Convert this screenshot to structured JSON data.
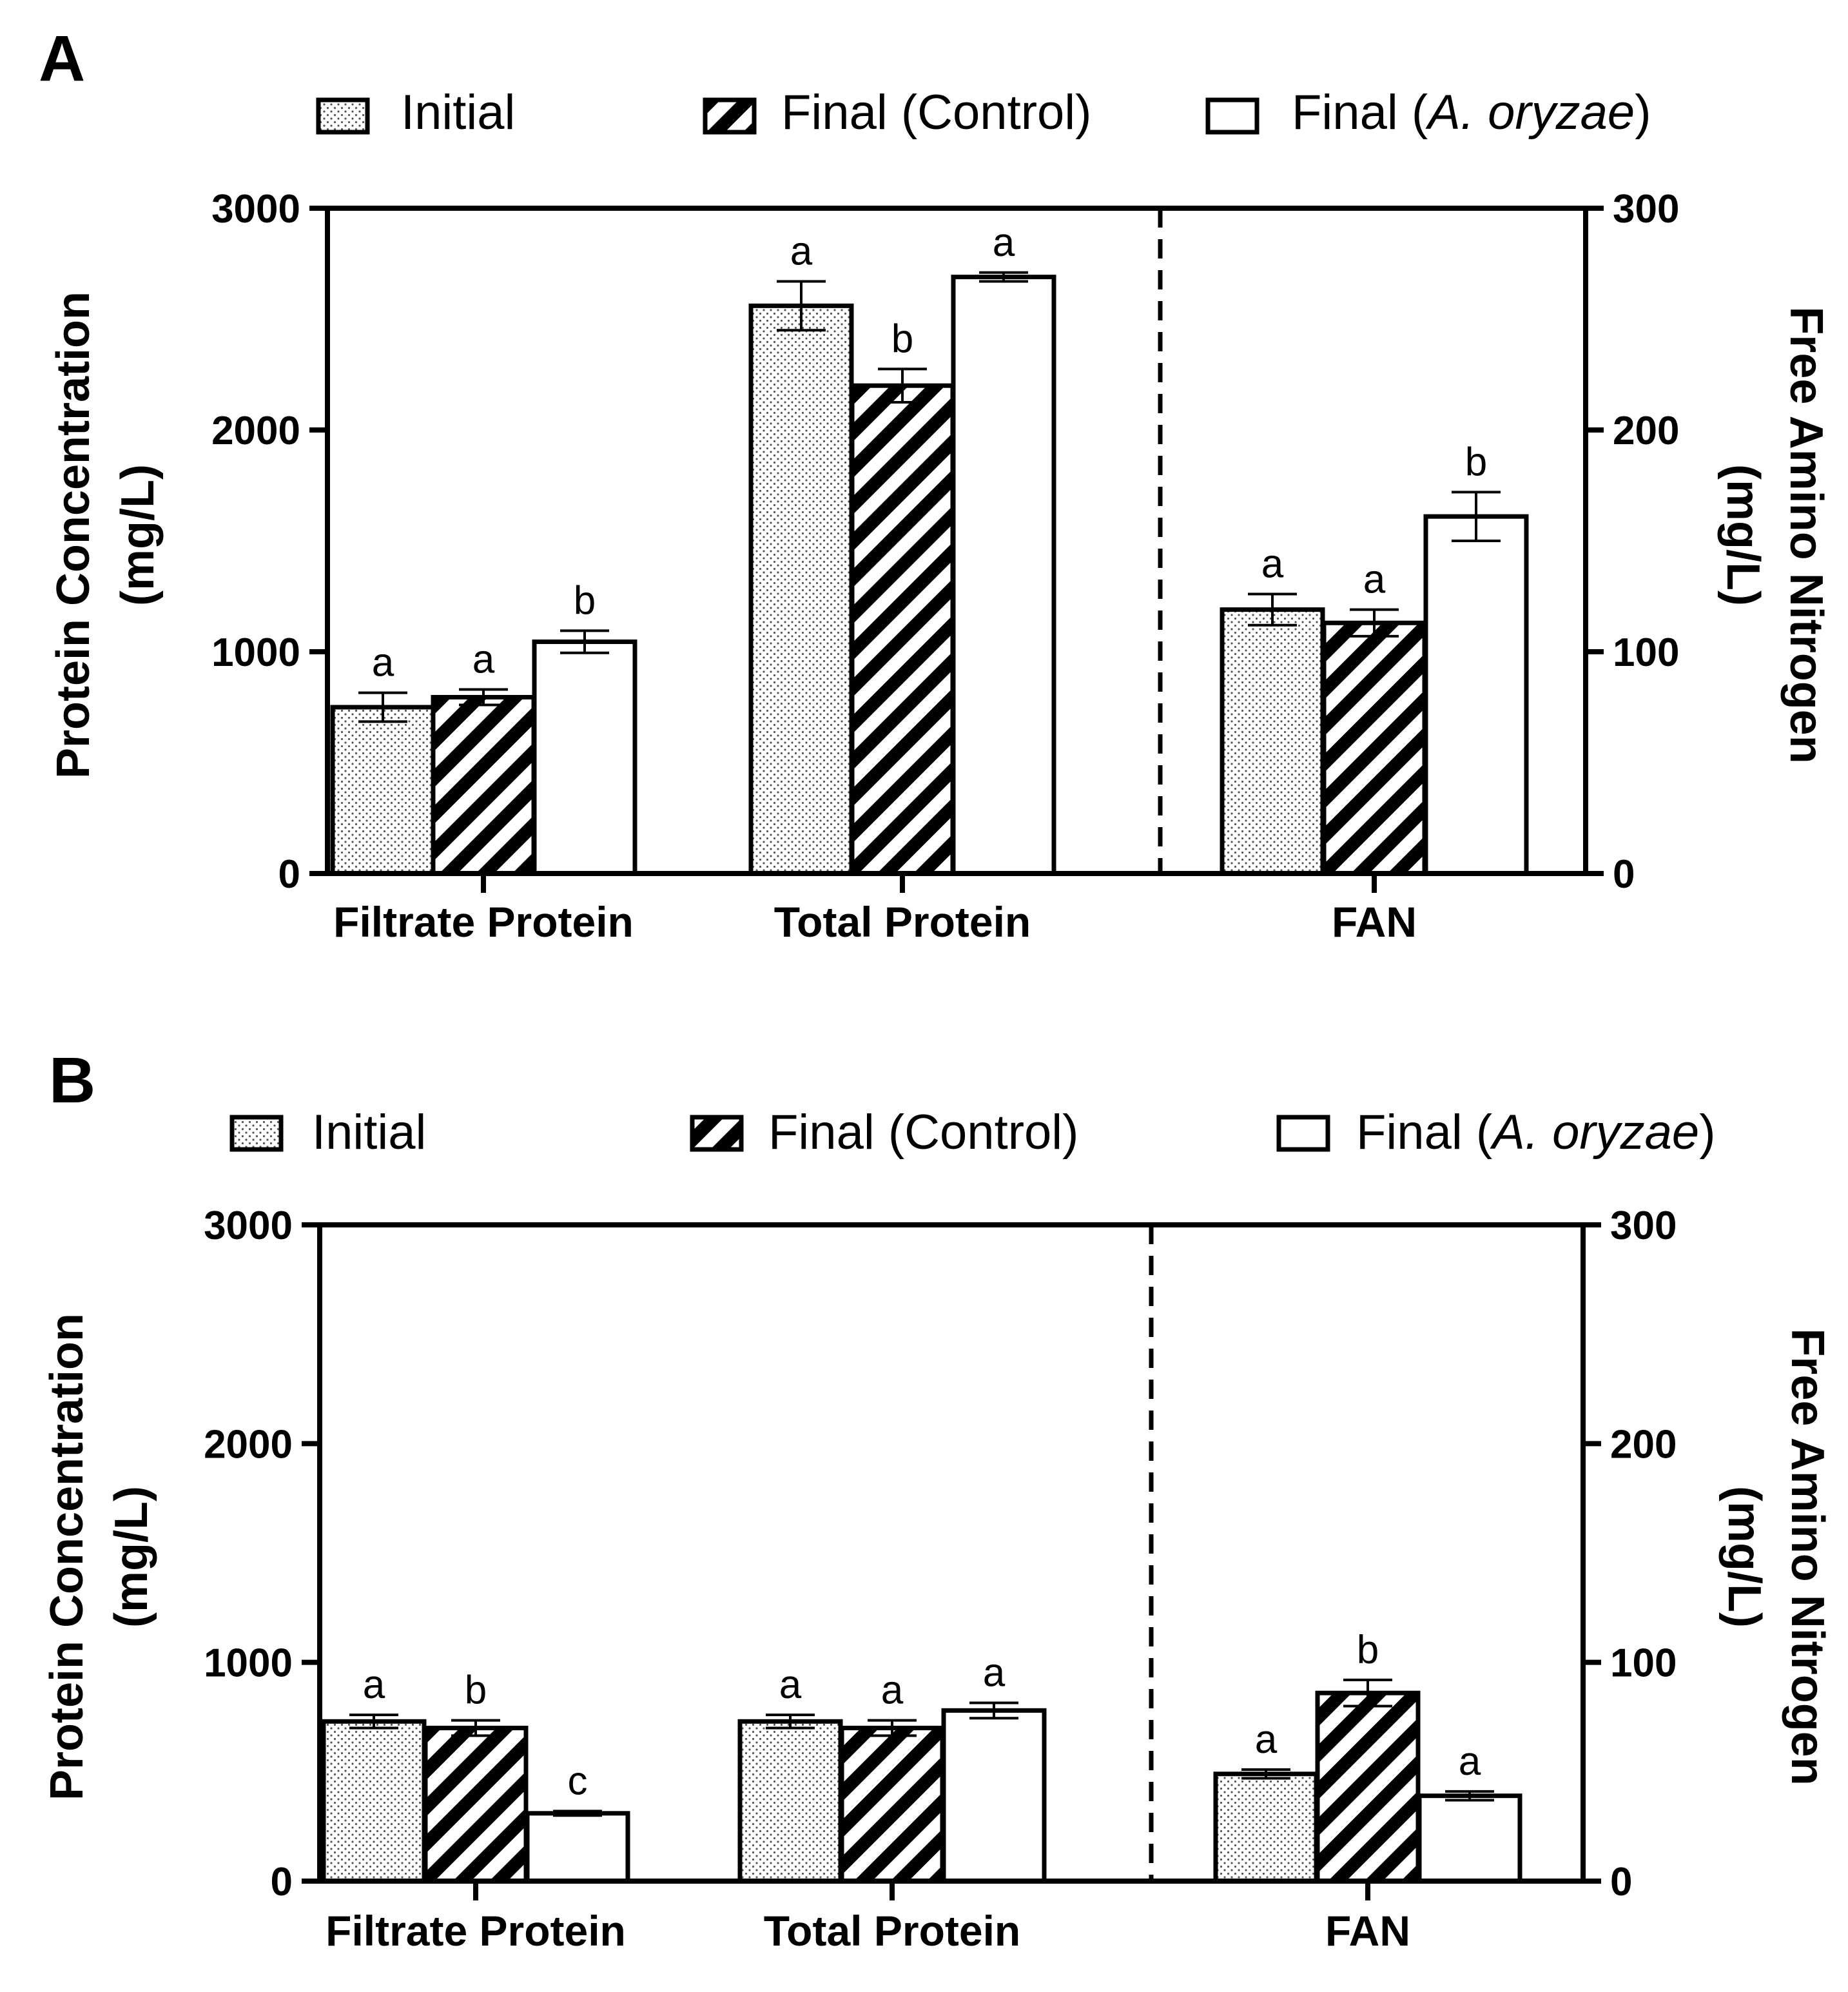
{
  "legend": {
    "initial": "Initial",
    "control": "Final (Control)",
    "oryzae_prefix": "Final (",
    "oryzae_species": "A. oryzae",
    "oryzae_suffix": ")"
  },
  "colors": {
    "ink": "#000000",
    "paper": "#ffffff",
    "dots": "#555555"
  },
  "chart_data": [
    {
      "panel": "A",
      "type": "bar",
      "categories": [
        "Filtrate Protein",
        "Total Protein",
        "FAN"
      ],
      "series": [
        {
          "name": "Initial",
          "pattern": "dots",
          "values": [
            750,
            2560,
            119
          ],
          "errors": [
            65,
            110,
            7
          ],
          "letters": [
            "a",
            "a",
            "a"
          ]
        },
        {
          "name": "Final (Control)",
          "pattern": "stripes",
          "values": [
            795,
            2200,
            113
          ],
          "errors": [
            35,
            75,
            6
          ],
          "letters": [
            "a",
            "b",
            "a"
          ]
        },
        {
          "name": "Final (A. oryzae)",
          "pattern": "open",
          "values": [
            1045,
            2690,
            161
          ],
          "errors": [
            50,
            20,
            11
          ],
          "letters": [
            "b",
            "a",
            "b"
          ]
        }
      ],
      "axis_assignment": [
        "left",
        "left",
        "right"
      ],
      "ylabel_left_line1": "Protein Concentration",
      "ylabel_left_line2": "(mg/L)",
      "ylabel_right_line1": "Free Amino Nitrogen",
      "ylabel_right_line2": "(mg/L)",
      "ylim_left": [
        0,
        3000
      ],
      "ylim_right": [
        0,
        300
      ],
      "yticks_left": [
        "0",
        "1000",
        "2000",
        "3000"
      ],
      "yticks_right": [
        "0",
        "100",
        "200",
        "300"
      ],
      "divider": "dashed line between Total Protein and FAN"
    },
    {
      "panel": "B",
      "type": "bar",
      "categories": [
        "Filtrate Protein",
        "Total Protein",
        "FAN"
      ],
      "series": [
        {
          "name": "Initial",
          "pattern": "dots",
          "values": [
            730,
            730,
            49
          ],
          "errors": [
            30,
            30,
            2
          ],
          "letters": [
            "a",
            "a",
            "a"
          ]
        },
        {
          "name": "Final (Control)",
          "pattern": "stripes",
          "values": [
            700,
            700,
            86
          ],
          "errors": [
            35,
            35,
            6
          ],
          "letters": [
            "b",
            "a",
            "b"
          ]
        },
        {
          "name": "Final (A. oryzae)",
          "pattern": "open",
          "values": [
            310,
            780,
            39
          ],
          "errors": [
            10,
            35,
            2
          ],
          "letters": [
            "c",
            "a",
            "a"
          ]
        }
      ],
      "axis_assignment": [
        "left",
        "left",
        "right"
      ],
      "ylabel_left_line1": "Protein Concentration",
      "ylabel_left_line2": "(mg/L)",
      "ylabel_right_line1": "Free Amino Nitrogen",
      "ylabel_right_line2": "(mg/L)",
      "ylim_left": [
        0,
        3000
      ],
      "ylim_right": [
        0,
        300
      ],
      "yticks_left": [
        "0",
        "1000",
        "2000",
        "3000"
      ],
      "yticks_right": [
        "0",
        "100",
        "200",
        "300"
      ],
      "divider": "dashed line between Total Protein and FAN"
    }
  ]
}
